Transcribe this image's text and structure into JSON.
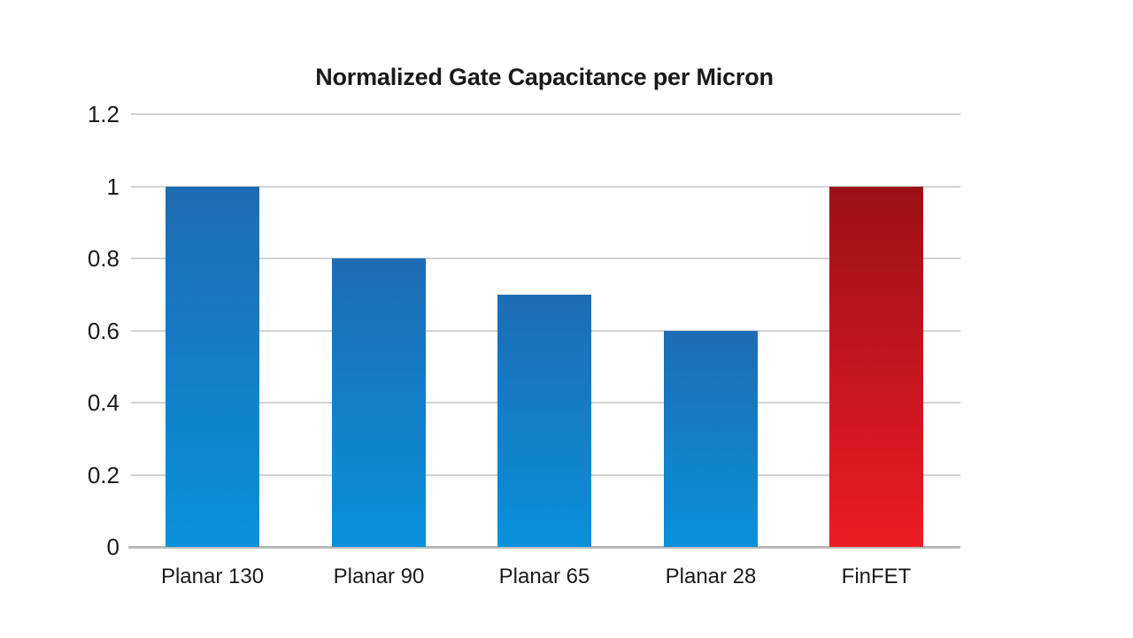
{
  "chart_data": {
    "type": "bar",
    "title": "Normalized Gate Capacitance per Micron",
    "categories": [
      "Planar 130",
      "Planar 90",
      "Planar 65",
      "Planar 28",
      "FinFET"
    ],
    "values": [
      1,
      0.8,
      0.7,
      0.6,
      1
    ],
    "xlabel": "",
    "ylabel": "",
    "ylim": [
      0,
      1.2
    ],
    "yticks": [
      {
        "value": 0,
        "label": "0"
      },
      {
        "value": 0.2,
        "label": "0.2"
      },
      {
        "value": 0.4,
        "label": "0.4"
      },
      {
        "value": 0.6,
        "label": "0.6"
      },
      {
        "value": 0.8,
        "label": "0.8"
      },
      {
        "value": 1,
        "label": "1"
      },
      {
        "value": 1.2,
        "label": "1.2"
      }
    ],
    "grid": true,
    "legend": false,
    "bar_colors": [
      {
        "top": "#1E6CB3",
        "bottom": "#0991DB"
      },
      {
        "top": "#1E6CB3",
        "bottom": "#0991DB"
      },
      {
        "top": "#1E6CB3",
        "bottom": "#0991DB"
      },
      {
        "top": "#1E6CB3",
        "bottom": "#0991DB"
      },
      {
        "top": "#9B1117",
        "bottom": "#EC1C24"
      }
    ],
    "grid_color": "#D2D2D2",
    "baseline_color": "#B9B9B9",
    "text_color": "#1A1A1A",
    "background_color": "#FFFFFF"
  }
}
